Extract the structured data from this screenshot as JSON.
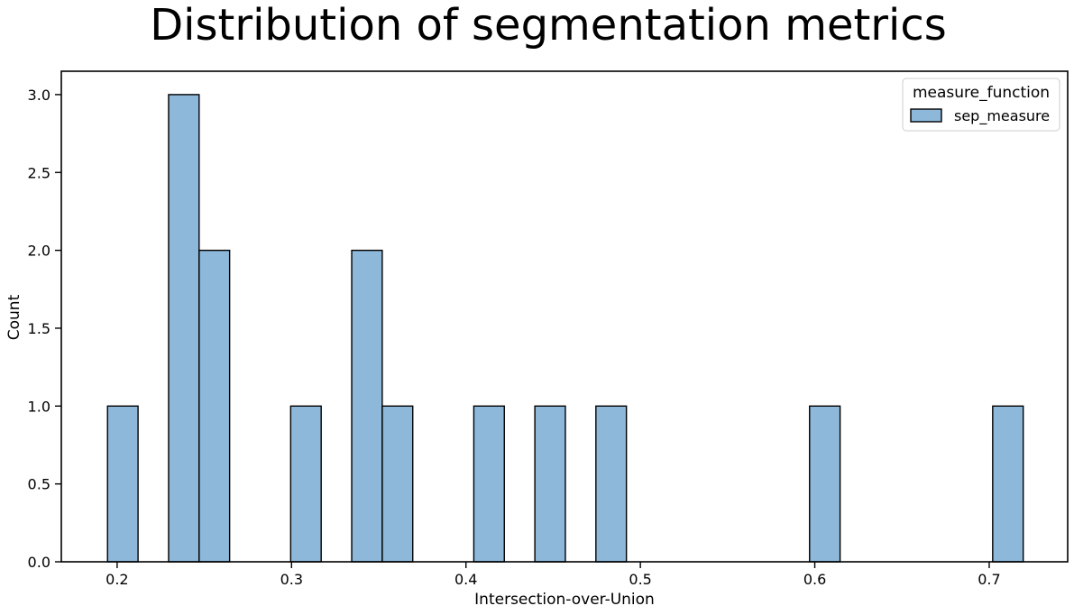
{
  "chart_data": {
    "type": "bar",
    "title": "Distribution of segmentation metrics",
    "xlabel": "Intersection-over-Union",
    "ylabel": "Count",
    "xlim": [
      0.168,
      0.745
    ],
    "ylim": [
      0,
      3.15
    ],
    "x_ticks": [
      "0.2",
      "0.3",
      "0.4",
      "0.5",
      "0.6",
      "0.7"
    ],
    "y_ticks": [
      "0.0",
      "0.5",
      "1.0",
      "1.5",
      "2.0",
      "2.5",
      "3.0"
    ],
    "grid": false,
    "legend": {
      "title": "measure_function",
      "placement": "top-right",
      "entries": [
        "sep_measure"
      ]
    },
    "bin_width": 0.0175,
    "bins": [
      {
        "x_start": 0.1945,
        "count": 1
      },
      {
        "x_start": 0.2295,
        "count": 3
      },
      {
        "x_start": 0.247,
        "count": 2
      },
      {
        "x_start": 0.2995,
        "count": 1
      },
      {
        "x_start": 0.3345,
        "count": 2
      },
      {
        "x_start": 0.352,
        "count": 1
      },
      {
        "x_start": 0.4045,
        "count": 1
      },
      {
        "x_start": 0.4395,
        "count": 1
      },
      {
        "x_start": 0.4745,
        "count": 1
      },
      {
        "x_start": 0.597,
        "count": 1
      },
      {
        "x_start": 0.702,
        "count": 1
      }
    ],
    "series": [
      {
        "name": "sep_measure",
        "color": "#8db8da",
        "edge_color": "#000000"
      }
    ]
  }
}
